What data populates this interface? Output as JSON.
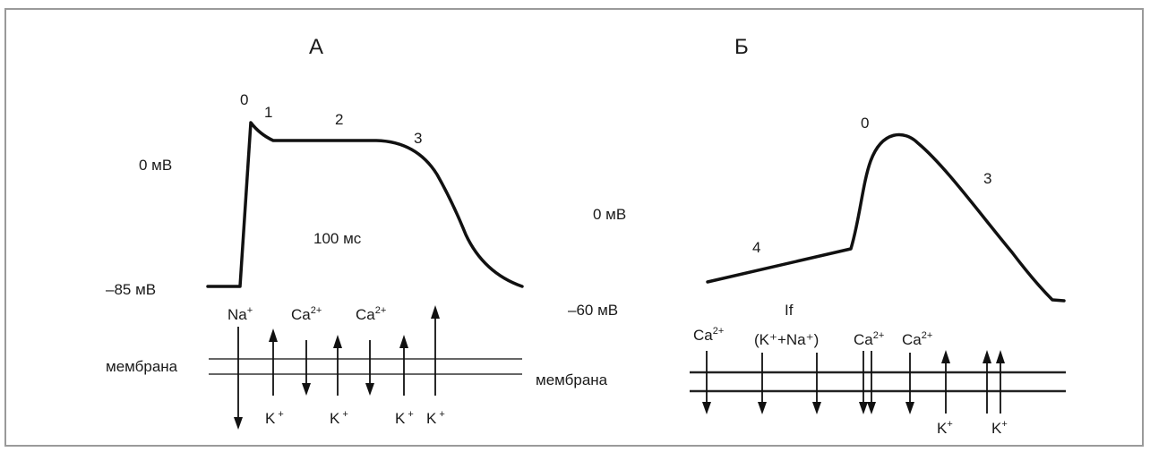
{
  "panel_a": {
    "title": "А",
    "phases": [
      "0",
      "1",
      "2",
      "3"
    ],
    "level_zero": "0 мВ",
    "level_rest": "–85 мВ",
    "duration": "100 мс",
    "membrane": "мембрана",
    "ion_na": "Na",
    "ion_na_sup": "+",
    "ion_ca1": "Ca",
    "ion_ca1_sup": "2+",
    "ion_ca2": "Ca",
    "ion_ca2_sup": "2+",
    "ion_k1": "K",
    "ion_k1_sup": "+",
    "ion_k2": "K",
    "ion_k2_sup": "+",
    "ion_k3": "K",
    "ion_k3_sup": "+",
    "ion_k4": "K",
    "ion_k4_sup": "+"
  },
  "panel_b": {
    "title": "Б",
    "phases": [
      "0",
      "3",
      "4"
    ],
    "level_zero": "0 мВ",
    "level_rest": "–60 мВ",
    "membrane": "мембрана",
    "funny_current": "If",
    "funny_ions": "(K⁺+Na⁺)",
    "ion_ca1": "Ca",
    "ion_ca1_sup": "2+",
    "ion_ca2": "Ca",
    "ion_ca2_sup": "2+",
    "ion_ca3": "Ca",
    "ion_ca3_sup": "2+",
    "ion_k1": "K",
    "ion_k1_sup": "+",
    "ion_k2": "K",
    "ion_k2_sup": "+"
  }
}
